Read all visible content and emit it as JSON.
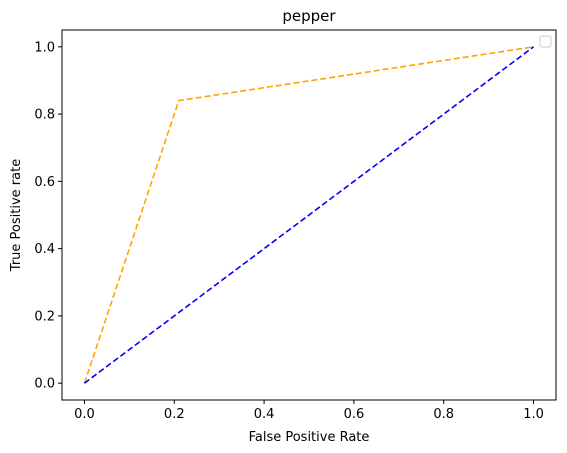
{
  "chart_data": {
    "type": "line",
    "title": "pepper",
    "xlabel": "False Positive Rate",
    "ylabel": "True Positive rate",
    "xlim": [
      -0.05,
      1.05
    ],
    "ylim": [
      -0.05,
      1.05
    ],
    "x_ticks": [
      0.0,
      0.2,
      0.4,
      0.6,
      0.8,
      1.0
    ],
    "y_ticks": [
      0.0,
      0.2,
      0.4,
      0.6,
      0.8,
      1.0
    ],
    "x_tick_labels": [
      "0.0",
      "0.2",
      "0.4",
      "0.6",
      "0.8",
      "1.0"
    ],
    "y_tick_labels": [
      "0.0",
      "0.2",
      "0.4",
      "0.6",
      "0.8",
      "1.0"
    ],
    "grid": false,
    "legend": {
      "placement": "top-right",
      "entries": []
    },
    "series": [
      {
        "x": [
          0.0,
          0.21,
          1.0
        ],
        "y": [
          0.0,
          0.84,
          1.0
        ],
        "color": "#FFA500",
        "style": "dashed"
      },
      {
        "x": [
          0.0,
          1.0
        ],
        "y": [
          0.0,
          1.0
        ],
        "color": "#0000FF",
        "style": "dashed"
      }
    ]
  }
}
